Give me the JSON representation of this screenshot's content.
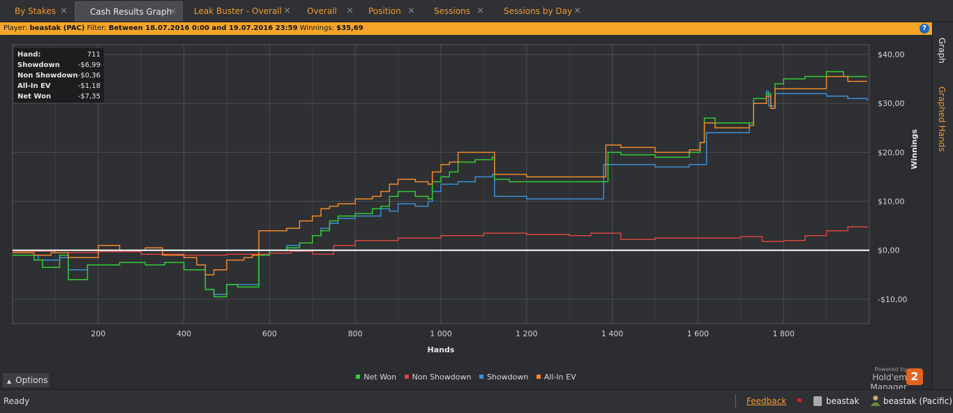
{
  "tabs": [
    {
      "label": "By Stakes",
      "active": false
    },
    {
      "label": "Cash Results Graph",
      "active": true
    },
    {
      "label": "Leak Buster - Overall",
      "active": false
    },
    {
      "label": "Overall",
      "active": false
    },
    {
      "label": "Position",
      "active": false
    },
    {
      "label": "Sessions",
      "active": false
    },
    {
      "label": "Sessions by Day",
      "active": false
    }
  ],
  "tab_close_glyph": "×",
  "info": {
    "player_label": "Player:",
    "player": "beastak (PAC)",
    "filter_label": "Filter:",
    "filter": "Between 18.07.2016 0:00 and 19.07.2016 23:59",
    "winnings_label": "Winnings:",
    "winnings": "$35,69"
  },
  "help_glyph": "?",
  "side_tabs": {
    "graph": "Graph",
    "graphed_hands": "Graphed Hands"
  },
  "stats": [
    {
      "label": "Hand:",
      "value": "711"
    },
    {
      "label": "Showdown",
      "value": "-$6,99"
    },
    {
      "label": "Non Showdown",
      "value": "-$0,36"
    },
    {
      "label": "All-In EV",
      "value": "-$1,18"
    },
    {
      "label": "Net Won",
      "value": "-$7,35"
    }
  ],
  "options_label": "Options",
  "options_icon": "chevron-up-icon",
  "powered_by": "Powered by",
  "brand": "Hold'em Manager",
  "brand_logo": "2",
  "status": {
    "text": "Ready",
    "feedback": "Feedback",
    "database": "beastak",
    "user": "beastak (Pacific)"
  },
  "colors": {
    "net_won": "#33cc33",
    "non_showdown": "#d84444",
    "showdown": "#3d8fd6",
    "allin_ev": "#f08a2c",
    "accent": "#f09a30"
  },
  "chart_data": {
    "type": "line",
    "xlabel": "Hands",
    "ylabel": "Winnings",
    "xlim": [
      0,
      2000
    ],
    "ylim": [
      -15,
      42
    ],
    "x_ticks": [
      200,
      400,
      600,
      800,
      1000,
      1200,
      1400,
      1600,
      1800
    ],
    "x_tick_labels": [
      "200",
      "400",
      "600",
      "800",
      "1 000",
      "1 200",
      "1 400",
      "1 600",
      "1 800"
    ],
    "y_ticks": [
      -10,
      0,
      10,
      20,
      30,
      40
    ],
    "y_tick_labels": [
      "-$10,00",
      "$0,00",
      "$10,00",
      "$20,00",
      "$30,00",
      "$40,00"
    ],
    "grid": true,
    "legend_position": "bottom",
    "series": [
      {
        "name": "Net Won",
        "color": "#33cc33",
        "points": [
          [
            0,
            -1
          ],
          [
            50,
            -2
          ],
          [
            70,
            -3.5
          ],
          [
            110,
            -1
          ],
          [
            130,
            -6
          ],
          [
            175,
            -3
          ],
          [
            250,
            -2.5
          ],
          [
            310,
            -3
          ],
          [
            355,
            -2.5
          ],
          [
            400,
            -4
          ],
          [
            450,
            -8
          ],
          [
            470,
            -9.5
          ],
          [
            500,
            -7
          ],
          [
            525,
            -7.5
          ],
          [
            565,
            -7.5
          ],
          [
            575,
            -1
          ],
          [
            600,
            0
          ],
          [
            640,
            0.5
          ],
          [
            670,
            1.5
          ],
          [
            700,
            3
          ],
          [
            720,
            4
          ],
          [
            740,
            6
          ],
          [
            760,
            7
          ],
          [
            800,
            7.5
          ],
          [
            840,
            8.5
          ],
          [
            860,
            9
          ],
          [
            880,
            11
          ],
          [
            900,
            12
          ],
          [
            940,
            11
          ],
          [
            970,
            10.5
          ],
          [
            980,
            14
          ],
          [
            1000,
            15
          ],
          [
            1020,
            16
          ],
          [
            1040,
            18
          ],
          [
            1080,
            18.5
          ],
          [
            1120,
            19
          ],
          [
            1125,
            14.5
          ],
          [
            1160,
            14
          ],
          [
            1240,
            14
          ],
          [
            1300,
            14
          ],
          [
            1360,
            14
          ],
          [
            1390,
            20
          ],
          [
            1420,
            19.5
          ],
          [
            1500,
            19
          ],
          [
            1580,
            20
          ],
          [
            1605,
            22
          ],
          [
            1615,
            27
          ],
          [
            1640,
            26
          ],
          [
            1700,
            26
          ],
          [
            1720,
            26
          ],
          [
            1730,
            31
          ],
          [
            1760,
            32
          ],
          [
            1770,
            29
          ],
          [
            1780,
            34
          ],
          [
            1800,
            35
          ],
          [
            1850,
            35.5
          ],
          [
            1900,
            36.5
          ],
          [
            1940,
            35.5
          ],
          [
            1995,
            35.5
          ]
        ]
      },
      {
        "name": "Non Showdown",
        "color": "#d84444",
        "points": [
          [
            0,
            -0.2
          ],
          [
            100,
            -0.5
          ],
          [
            200,
            -0.3
          ],
          [
            300,
            -0.8
          ],
          [
            400,
            -1
          ],
          [
            500,
            -0.8
          ],
          [
            600,
            -0.6
          ],
          [
            650,
            -0.2
          ],
          [
            700,
            -0.8
          ],
          [
            750,
            1
          ],
          [
            800,
            2
          ],
          [
            900,
            2.5
          ],
          [
            1000,
            3
          ],
          [
            1100,
            3.5
          ],
          [
            1200,
            3.2
          ],
          [
            1300,
            3
          ],
          [
            1350,
            3.5
          ],
          [
            1420,
            2.2
          ],
          [
            1500,
            2.5
          ],
          [
            1600,
            2.5
          ],
          [
            1700,
            2.8
          ],
          [
            1750,
            1.8
          ],
          [
            1800,
            2
          ],
          [
            1850,
            3
          ],
          [
            1900,
            4
          ],
          [
            1950,
            4.8
          ],
          [
            1995,
            4.6
          ]
        ]
      },
      {
        "name": "Showdown",
        "color": "#3d8fd6",
        "points": [
          [
            0,
            -1
          ],
          [
            60,
            -2
          ],
          [
            110,
            -1.5
          ],
          [
            130,
            -4
          ],
          [
            175,
            -3
          ],
          [
            250,
            -2.5
          ],
          [
            310,
            -3
          ],
          [
            355,
            -2.5
          ],
          [
            400,
            -4
          ],
          [
            450,
            -8
          ],
          [
            470,
            -9
          ],
          [
            500,
            -7
          ],
          [
            560,
            -7
          ],
          [
            575,
            -1
          ],
          [
            600,
            0
          ],
          [
            640,
            1
          ],
          [
            670,
            1.5
          ],
          [
            700,
            3
          ],
          [
            720,
            4.5
          ],
          [
            740,
            5.5
          ],
          [
            760,
            6.5
          ],
          [
            800,
            7
          ],
          [
            860,
            8.5
          ],
          [
            880,
            8
          ],
          [
            900,
            9.5
          ],
          [
            940,
            9
          ],
          [
            970,
            10
          ],
          [
            980,
            12
          ],
          [
            1000,
            13.5
          ],
          [
            1040,
            14
          ],
          [
            1080,
            15
          ],
          [
            1120,
            15.5
          ],
          [
            1125,
            11
          ],
          [
            1200,
            10.5
          ],
          [
            1300,
            10.5
          ],
          [
            1360,
            10.5
          ],
          [
            1380,
            17.5
          ],
          [
            1440,
            17.5
          ],
          [
            1500,
            17
          ],
          [
            1580,
            17.5
          ],
          [
            1605,
            17.5
          ],
          [
            1620,
            24
          ],
          [
            1640,
            24
          ],
          [
            1720,
            26
          ],
          [
            1730,
            31
          ],
          [
            1760,
            32.5
          ],
          [
            1765,
            29.5
          ],
          [
            1780,
            32
          ],
          [
            1850,
            32
          ],
          [
            1900,
            31.5
          ],
          [
            1950,
            31
          ],
          [
            1995,
            30.5
          ]
        ]
      },
      {
        "name": "All-In EV",
        "color": "#f08a2c",
        "points": [
          [
            0,
            -0.5
          ],
          [
            50,
            -1
          ],
          [
            90,
            -0.5
          ],
          [
            130,
            -1.5
          ],
          [
            200,
            1
          ],
          [
            250,
            0
          ],
          [
            310,
            0.5
          ],
          [
            350,
            -1
          ],
          [
            400,
            -1.5
          ],
          [
            430,
            -3
          ],
          [
            450,
            -5
          ],
          [
            470,
            -4
          ],
          [
            500,
            -2
          ],
          [
            540,
            -1.5
          ],
          [
            560,
            -1
          ],
          [
            575,
            4
          ],
          [
            600,
            4
          ],
          [
            640,
            4.5
          ],
          [
            670,
            6
          ],
          [
            700,
            7
          ],
          [
            720,
            8.5
          ],
          [
            740,
            9
          ],
          [
            760,
            9.5
          ],
          [
            800,
            10.5
          ],
          [
            840,
            11
          ],
          [
            860,
            12
          ],
          [
            880,
            13.5
          ],
          [
            900,
            14.5
          ],
          [
            940,
            14
          ],
          [
            970,
            13.5
          ],
          [
            980,
            16
          ],
          [
            1000,
            17.5
          ],
          [
            1020,
            18
          ],
          [
            1040,
            20
          ],
          [
            1080,
            20
          ],
          [
            1120,
            20
          ],
          [
            1125,
            15.5
          ],
          [
            1200,
            15
          ],
          [
            1300,
            15
          ],
          [
            1360,
            15
          ],
          [
            1385,
            21.5
          ],
          [
            1420,
            21
          ],
          [
            1500,
            20
          ],
          [
            1580,
            20.5
          ],
          [
            1605,
            22
          ],
          [
            1615,
            26
          ],
          [
            1640,
            25
          ],
          [
            1720,
            25.5
          ],
          [
            1730,
            30
          ],
          [
            1760,
            31.5
          ],
          [
            1770,
            29
          ],
          [
            1780,
            33
          ],
          [
            1850,
            33
          ],
          [
            1900,
            35.5
          ],
          [
            1950,
            34.5
          ],
          [
            1995,
            34.5
          ]
        ]
      }
    ]
  }
}
